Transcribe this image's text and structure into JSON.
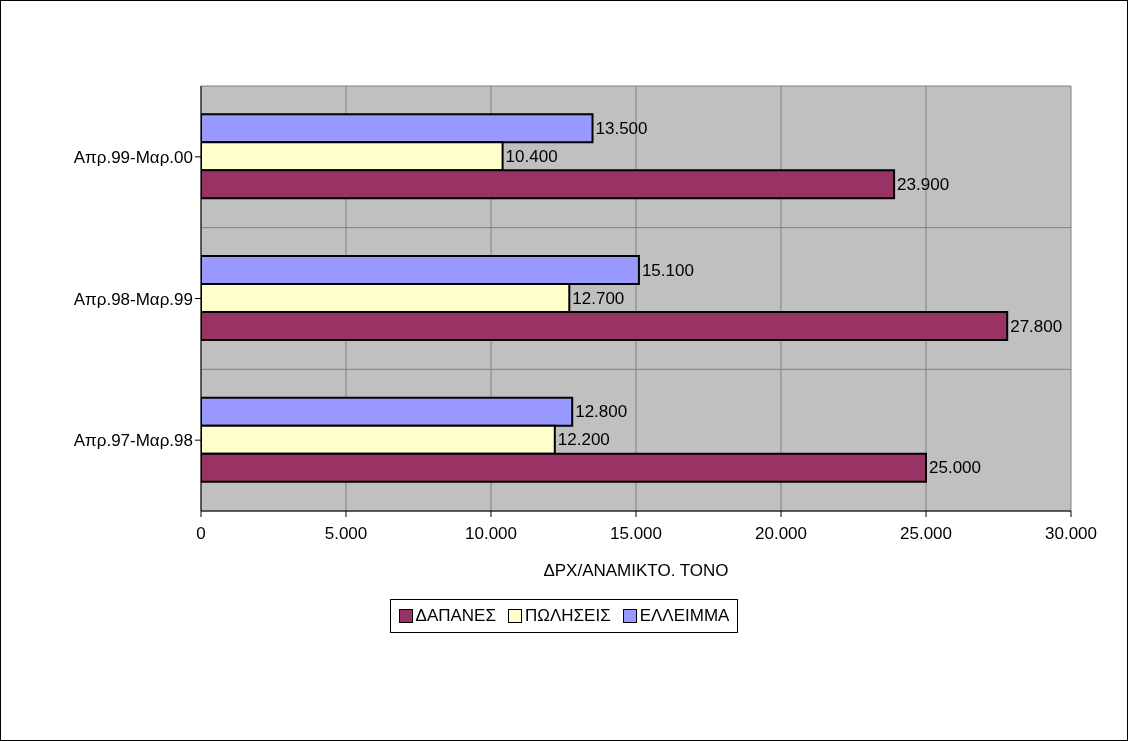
{
  "chart_data": {
    "type": "bar",
    "orientation": "horizontal",
    "xlabel": "ΔΡΧ/ΑΝΑΜΙΚΤΟ. ΤΟΝΟ",
    "categories": [
      "Απρ.99-Μαρ.00",
      "Απρ.98-Μαρ.99",
      "Απρ.97-Μαρ.98"
    ],
    "series": [
      {
        "name": "ΔΑΠΑΝΕΣ",
        "color": "#993366",
        "values": [
          23900,
          27800,
          25000
        ],
        "value_labels": [
          "23.900",
          "27.800",
          "25.000"
        ]
      },
      {
        "name": "ΠΩΛΗΣΕΙΣ",
        "color": "#ffffcc",
        "values": [
          10400,
          12700,
          12200
        ],
        "value_labels": [
          "10.400",
          "12.700",
          "12.200"
        ]
      },
      {
        "name": "ΕΛΛΕΙΜΜΑ",
        "color": "#9999ff",
        "values": [
          13500,
          15100,
          12800
        ],
        "value_labels": [
          "13.500",
          "15.100",
          "12.800"
        ]
      }
    ],
    "xlim": [
      0,
      30000
    ],
    "xticks": [
      0,
      {
        "value": 5000,
        "label": "5.000"
      },
      {
        "value": 10000,
        "label": "10.000"
      },
      {
        "value": 15000,
        "label": "15.000"
      },
      {
        "value": 20000,
        "label": "20.000"
      },
      {
        "value": 25000,
        "label": "25.000"
      },
      {
        "value": 30000,
        "label": "30.000"
      }
    ],
    "grid": true,
    "legend": "bottom"
  }
}
